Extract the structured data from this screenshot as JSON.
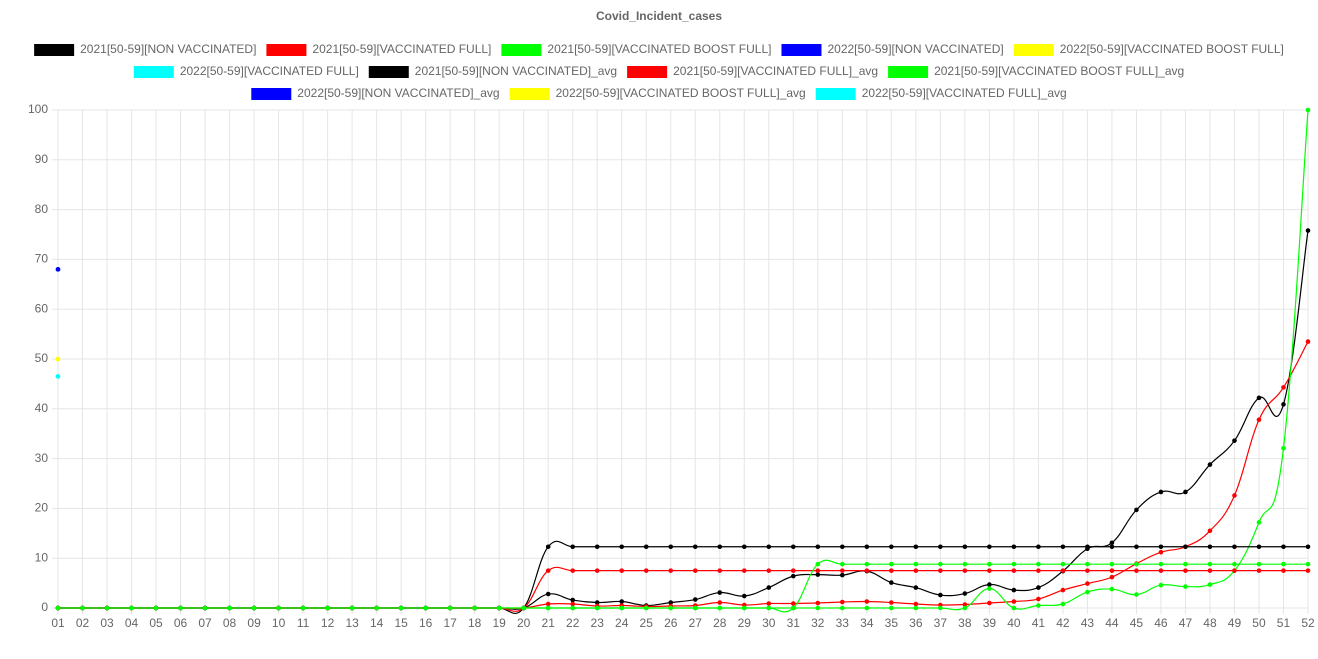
{
  "chart_data": {
    "type": "line",
    "title": "Covid_Incident_cases",
    "categories": [
      "01",
      "02",
      "03",
      "04",
      "05",
      "06",
      "07",
      "08",
      "09",
      "10",
      "11",
      "12",
      "13",
      "14",
      "15",
      "16",
      "17",
      "18",
      "19",
      "20",
      "21",
      "22",
      "23",
      "24",
      "25",
      "26",
      "27",
      "28",
      "29",
      "30",
      "31",
      "32",
      "33",
      "34",
      "35",
      "36",
      "37",
      "38",
      "39",
      "40",
      "41",
      "42",
      "43",
      "44",
      "45",
      "46",
      "47",
      "48",
      "49",
      "50",
      "51",
      "52"
    ],
    "ylim": [
      0,
      100
    ],
    "yticks": [
      0,
      10,
      20,
      30,
      40,
      50,
      60,
      70,
      80,
      90,
      100
    ],
    "grid": true,
    "legend": "top",
    "series": [
      {
        "name": "2021[50-59][NON VACCINATED]",
        "color": "#000000",
        "values": [
          0,
          0,
          0,
          0,
          0,
          0,
          0,
          0,
          0,
          0,
          0,
          0,
          0,
          0,
          0,
          0,
          0,
          0,
          0,
          0,
          2.8,
          1.6,
          1.1,
          1.3,
          0.5,
          1.1,
          1.7,
          3.1,
          2.4,
          4.1,
          6.4,
          6.7,
          6.6,
          7.4,
          5.1,
          4.1,
          2.6,
          2.9,
          4.7,
          3.6,
          4.1,
          7.4,
          11.9,
          13.1,
          19.7,
          23.3,
          23.3,
          28.8,
          33.6,
          42.2,
          40.9,
          75.8
        ]
      },
      {
        "name": "2021[50-59][VACCINATED FULL]",
        "color": "#ff0000",
        "values": [
          0,
          0,
          0,
          0,
          0,
          0,
          0,
          0,
          0,
          0,
          0,
          0,
          0,
          0,
          0,
          0,
          0,
          0,
          0,
          0,
          0.8,
          0.8,
          0.4,
          0.5,
          0.3,
          0.4,
          0.5,
          1.1,
          0.6,
          0.9,
          0.9,
          1.0,
          1.2,
          1.3,
          1.1,
          0.8,
          0.6,
          0.7,
          1.0,
          1.3,
          1.8,
          3.6,
          4.9,
          6.2,
          8.9,
          11.2,
          12.3,
          15.5,
          22.6,
          37.8,
          44.3,
          53.5
        ]
      },
      {
        "name": "2021[50-59][VACCINATED BOOST FULL]",
        "color": "#00ff00",
        "values": [
          0,
          0,
          0,
          0,
          0,
          0,
          0,
          0,
          0,
          0,
          0,
          0,
          0,
          0,
          0,
          0,
          0,
          0,
          0,
          0,
          0,
          0,
          0,
          0,
          0,
          0,
          0,
          0,
          0,
          0,
          0,
          0,
          0,
          0,
          0,
          0,
          0,
          0,
          3.9,
          0,
          0.5,
          0.8,
          3.2,
          3.8,
          2.7,
          4.6,
          4.3,
          4.7,
          7.5,
          17.2,
          32.1,
          100
        ]
      },
      {
        "name": "2022[50-59][NON VACCINATED]",
        "color": "#0000ff",
        "values": [
          68,
          null,
          null,
          null,
          null,
          null,
          null,
          null,
          null,
          null,
          null,
          null,
          null,
          null,
          null,
          null,
          null,
          null,
          null,
          null,
          null,
          null,
          null,
          null,
          null,
          null,
          null,
          null,
          null,
          null,
          null,
          null,
          null,
          null,
          null,
          null,
          null,
          null,
          null,
          null,
          null,
          null,
          null,
          null,
          null,
          null,
          null,
          null,
          null,
          null,
          null,
          null
        ]
      },
      {
        "name": "2022[50-59][VACCINATED BOOST FULL]",
        "color": "#ffff00",
        "values": [
          50,
          null,
          null,
          null,
          null,
          null,
          null,
          null,
          null,
          null,
          null,
          null,
          null,
          null,
          null,
          null,
          null,
          null,
          null,
          null,
          null,
          null,
          null,
          null,
          null,
          null,
          null,
          null,
          null,
          null,
          null,
          null,
          null,
          null,
          null,
          null,
          null,
          null,
          null,
          null,
          null,
          null,
          null,
          null,
          null,
          null,
          null,
          null,
          null,
          null,
          null,
          null
        ]
      },
      {
        "name": "2022[50-59][VACCINATED FULL]",
        "color": "#00ffff",
        "values": [
          46.5,
          null,
          null,
          null,
          null,
          null,
          null,
          null,
          null,
          null,
          null,
          null,
          null,
          null,
          null,
          null,
          null,
          null,
          null,
          null,
          null,
          null,
          null,
          null,
          null,
          null,
          null,
          null,
          null,
          null,
          null,
          null,
          null,
          null,
          null,
          null,
          null,
          null,
          null,
          null,
          null,
          null,
          null,
          null,
          null,
          null,
          null,
          null,
          null,
          null,
          null,
          null
        ]
      },
      {
        "name": "2021[50-59][NON VACCINATED]_avg",
        "color": "#000000",
        "values": [
          0,
          0,
          0,
          0,
          0,
          0,
          0,
          0,
          0,
          0,
          0,
          0,
          0,
          0,
          0,
          0,
          0,
          0,
          0,
          0,
          12.3,
          12.3,
          12.3,
          12.3,
          12.3,
          12.3,
          12.3,
          12.3,
          12.3,
          12.3,
          12.3,
          12.3,
          12.3,
          12.3,
          12.3,
          12.3,
          12.3,
          12.3,
          12.3,
          12.3,
          12.3,
          12.3,
          12.3,
          12.3,
          12.3,
          12.3,
          12.3,
          12.3,
          12.3,
          12.3,
          12.3,
          12.3
        ]
      },
      {
        "name": "2021[50-59][VACCINATED FULL]_avg",
        "color": "#ff0000",
        "values": [
          0,
          0,
          0,
          0,
          0,
          0,
          0,
          0,
          0,
          0,
          0,
          0,
          0,
          0,
          0,
          0,
          0,
          0,
          0,
          0,
          7.5,
          7.5,
          7.5,
          7.5,
          7.5,
          7.5,
          7.5,
          7.5,
          7.5,
          7.5,
          7.5,
          7.5,
          7.5,
          7.5,
          7.5,
          7.5,
          7.5,
          7.5,
          7.5,
          7.5,
          7.5,
          7.5,
          7.5,
          7.5,
          7.5,
          7.5,
          7.5,
          7.5,
          7.5,
          7.5,
          7.5,
          7.5
        ]
      },
      {
        "name": "2021[50-59][VACCINATED BOOST FULL]_avg",
        "color": "#00ff00",
        "values": [
          0,
          0,
          0,
          0,
          0,
          0,
          0,
          0,
          0,
          0,
          0,
          0,
          0,
          0,
          0,
          0,
          0,
          0,
          0,
          0,
          0,
          0,
          0,
          0,
          0,
          0,
          0,
          0,
          0,
          0,
          0,
          8.8,
          8.8,
          8.8,
          8.8,
          8.8,
          8.8,
          8.8,
          8.8,
          8.8,
          8.8,
          8.8,
          8.8,
          8.8,
          8.8,
          8.8,
          8.8,
          8.8,
          8.8,
          8.8,
          8.8,
          8.8
        ]
      },
      {
        "name": "2022[50-59][NON VACCINATED]_avg",
        "color": "#0000ff",
        "values": [
          68,
          null,
          null,
          null,
          null,
          null,
          null,
          null,
          null,
          null,
          null,
          null,
          null,
          null,
          null,
          null,
          null,
          null,
          null,
          null,
          null,
          null,
          null,
          null,
          null,
          null,
          null,
          null,
          null,
          null,
          null,
          null,
          null,
          null,
          null,
          null,
          null,
          null,
          null,
          null,
          null,
          null,
          null,
          null,
          null,
          null,
          null,
          null,
          null,
          null,
          null,
          null
        ]
      },
      {
        "name": "2022[50-59][VACCINATED BOOST FULL]_avg",
        "color": "#ffff00",
        "values": [
          50,
          null,
          null,
          null,
          null,
          null,
          null,
          null,
          null,
          null,
          null,
          null,
          null,
          null,
          null,
          null,
          null,
          null,
          null,
          null,
          null,
          null,
          null,
          null,
          null,
          null,
          null,
          null,
          null,
          null,
          null,
          null,
          null,
          null,
          null,
          null,
          null,
          null,
          null,
          null,
          null,
          null,
          null,
          null,
          null,
          null,
          null,
          null,
          null,
          null,
          null,
          null
        ]
      },
      {
        "name": "2022[50-59][VACCINATED FULL]_avg",
        "color": "#00ffff",
        "values": [
          46.5,
          null,
          null,
          null,
          null,
          null,
          null,
          null,
          null,
          null,
          null,
          null,
          null,
          null,
          null,
          null,
          null,
          null,
          null,
          null,
          null,
          null,
          null,
          null,
          null,
          null,
          null,
          null,
          null,
          null,
          null,
          null,
          null,
          null,
          null,
          null,
          null,
          null,
          null,
          null,
          null,
          null,
          null,
          null,
          null,
          null,
          null,
          null,
          null,
          null,
          null,
          null
        ]
      }
    ]
  }
}
